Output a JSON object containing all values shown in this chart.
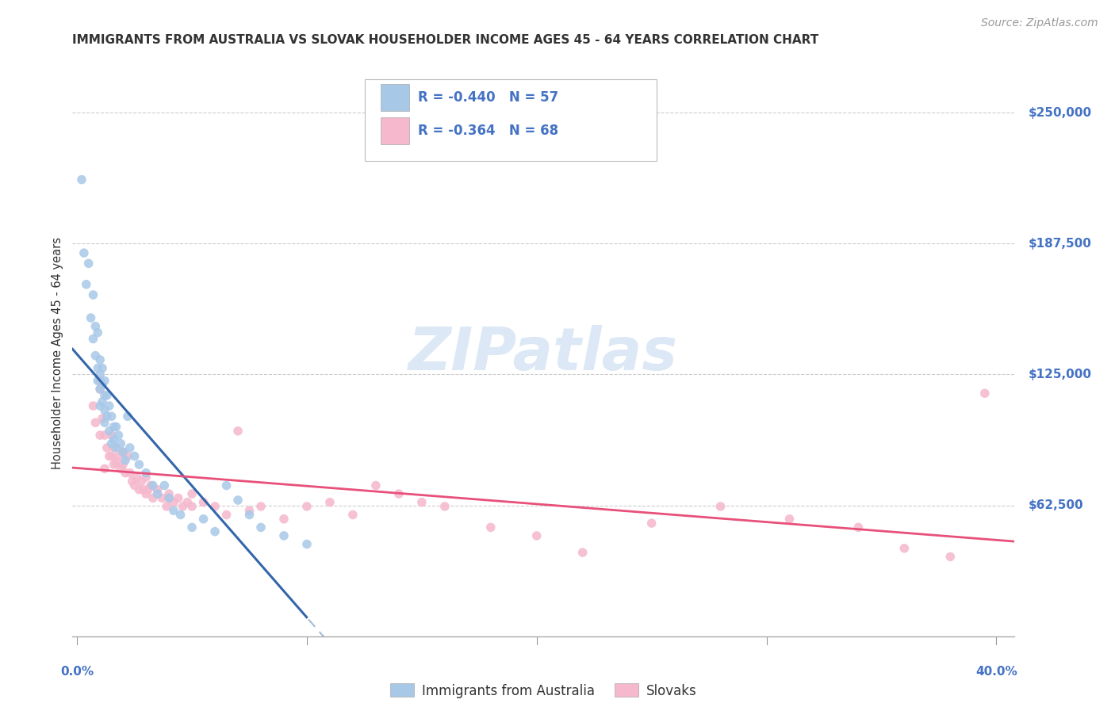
{
  "title": "IMMIGRANTS FROM AUSTRALIA VS SLOVAK HOUSEHOLDER INCOME AGES 45 - 64 YEARS CORRELATION CHART",
  "source": "Source: ZipAtlas.com",
  "ylabel": "Householder Income Ages 45 - 64 years",
  "y_tick_labels": [
    "$62,500",
    "$125,000",
    "$187,500",
    "$250,000"
  ],
  "y_tick_values": [
    62500,
    125000,
    187500,
    250000
  ],
  "y_min": 0,
  "y_max": 270000,
  "x_min": -0.002,
  "x_max": 0.408,
  "legend_blue_r": "R = -0.440",
  "legend_blue_n": "N = 57",
  "legend_pink_r": "R = -0.364",
  "legend_pink_n": "N = 68",
  "blue_color": "#a8c8e8",
  "blue_line_color": "#3366aa",
  "pink_color": "#f5b8cc",
  "pink_line_color": "#e8507a",
  "background_color": "#ffffff",
  "grid_color": "#cccccc",
  "watermark": "ZIPatlas",
  "title_fontsize": 11,
  "axis_label_fontsize": 10.5,
  "tick_label_fontsize": 11,
  "legend_fontsize": 12,
  "source_fontsize": 10,
  "marker_size": 70,
  "title_color": "#333333",
  "tick_label_color": "#4472c4",
  "watermark_color": "#dce8f5",
  "blue_scatter_x": [
    0.002,
    0.003,
    0.004,
    0.005,
    0.006,
    0.007,
    0.007,
    0.008,
    0.008,
    0.009,
    0.009,
    0.009,
    0.01,
    0.01,
    0.01,
    0.01,
    0.011,
    0.011,
    0.011,
    0.012,
    0.012,
    0.012,
    0.012,
    0.013,
    0.013,
    0.014,
    0.014,
    0.015,
    0.015,
    0.016,
    0.016,
    0.017,
    0.017,
    0.018,
    0.019,
    0.02,
    0.021,
    0.022,
    0.023,
    0.025,
    0.027,
    0.03,
    0.033,
    0.035,
    0.038,
    0.04,
    0.042,
    0.045,
    0.05,
    0.055,
    0.06,
    0.065,
    0.07,
    0.075,
    0.08,
    0.09,
    0.1
  ],
  "blue_scatter_y": [
    218000,
    183000,
    168000,
    178000,
    152000,
    163000,
    142000,
    148000,
    134000,
    145000,
    128000,
    122000,
    132000,
    125000,
    118000,
    110000,
    128000,
    120000,
    112000,
    122000,
    115000,
    108000,
    102000,
    115000,
    105000,
    110000,
    98000,
    105000,
    92000,
    100000,
    94000,
    100000,
    90000,
    96000,
    92000,
    88000,
    84000,
    105000,
    90000,
    86000,
    82000,
    78000,
    72000,
    68000,
    72000,
    66000,
    60000,
    58000,
    52000,
    56000,
    50000,
    72000,
    65000,
    58000,
    52000,
    48000,
    44000
  ],
  "pink_scatter_x": [
    0.007,
    0.008,
    0.01,
    0.01,
    0.011,
    0.012,
    0.013,
    0.014,
    0.015,
    0.015,
    0.016,
    0.016,
    0.017,
    0.018,
    0.019,
    0.02,
    0.021,
    0.022,
    0.023,
    0.024,
    0.025,
    0.026,
    0.027,
    0.028,
    0.029,
    0.03,
    0.031,
    0.032,
    0.033,
    0.035,
    0.037,
    0.039,
    0.04,
    0.042,
    0.044,
    0.046,
    0.048,
    0.05,
    0.055,
    0.06,
    0.065,
    0.07,
    0.075,
    0.08,
    0.09,
    0.1,
    0.11,
    0.12,
    0.13,
    0.14,
    0.15,
    0.16,
    0.18,
    0.2,
    0.22,
    0.25,
    0.28,
    0.31,
    0.34,
    0.36,
    0.38,
    0.395,
    0.01,
    0.012,
    0.02,
    0.03,
    0.04,
    0.05
  ],
  "pink_scatter_y": [
    110000,
    102000,
    96000,
    118000,
    104000,
    96000,
    90000,
    86000,
    96000,
    86000,
    90000,
    82000,
    83000,
    86000,
    80000,
    82000,
    78000,
    86000,
    78000,
    74000,
    72000,
    76000,
    70000,
    74000,
    70000,
    68000,
    70000,
    72000,
    66000,
    70000,
    66000,
    62000,
    68000,
    64000,
    66000,
    62000,
    64000,
    62000,
    64000,
    62000,
    58000,
    98000,
    60000,
    62000,
    56000,
    62000,
    64000,
    58000,
    72000,
    68000,
    64000,
    62000,
    52000,
    48000,
    40000,
    54000,
    62000,
    56000,
    52000,
    42000,
    38000,
    116000,
    122000,
    80000,
    88000,
    76000,
    66000,
    68000
  ]
}
